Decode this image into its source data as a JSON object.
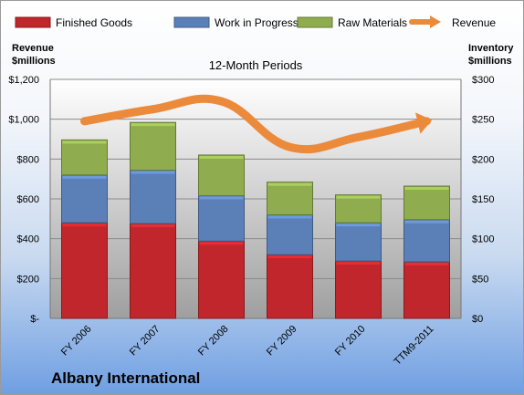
{
  "chart_data": {
    "type": "bar",
    "stacked": true,
    "subtitle": "12-Month Periods",
    "company": "Albany International",
    "left_axis_label": [
      "Revenue",
      "$millions"
    ],
    "right_axis_label": [
      "Inventory",
      "$millions"
    ],
    "categories": [
      "FY 2006",
      "FY 2007",
      "FY 2008",
      "FY 2009",
      "FY 2010",
      "TTM9-2011"
    ],
    "left_ticks": [
      "$-",
      "$200",
      "$400",
      "$600",
      "$800",
      "$1,000",
      "$1,200"
    ],
    "right_ticks": [
      "$0",
      "$50",
      "$100",
      "$150",
      "$200",
      "$250",
      "$300"
    ],
    "ylim_left": [
      0,
      1200
    ],
    "ylim_right": [
      0,
      300
    ],
    "grid": true,
    "legend_position": "top",
    "series": [
      {
        "name": "Finished Goods",
        "color": "#c0262b",
        "axis": "right",
        "values": [
          120,
          119,
          97,
          80,
          72,
          71
        ]
      },
      {
        "name": "Work in Progress",
        "color": "#5b80b8",
        "axis": "right",
        "values": [
          60,
          67,
          57,
          50,
          48,
          53
        ]
      },
      {
        "name": "Raw Materials",
        "color": "#8fad4e",
        "axis": "right",
        "values": [
          44,
          60,
          51,
          41,
          35,
          42
        ]
      },
      {
        "name": "Revenue",
        "color": "#ec8a3c",
        "axis": "left",
        "type": "line",
        "values": [
          990,
          1050,
          1090,
          860,
          910,
          990
        ]
      }
    ]
  }
}
